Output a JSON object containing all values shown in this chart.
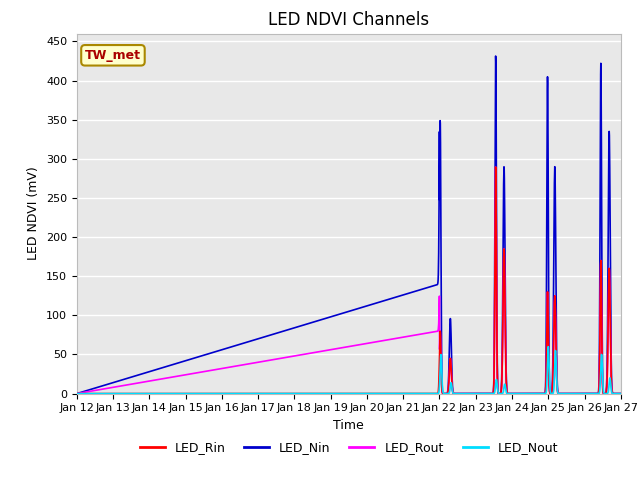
{
  "title": "LED NDVI Channels",
  "xlabel": "Time",
  "ylabel": "LED NDVI (mV)",
  "ylim": [
    0,
    460
  ],
  "yticks": [
    0,
    50,
    100,
    150,
    200,
    250,
    300,
    350,
    400,
    450
  ],
  "xtick_labels": [
    "Jan 12",
    "Jan 13",
    "Jan 14",
    "Jan 15",
    "Jan 16",
    "Jan 17",
    "Jan 18",
    "Jan 19",
    "Jan 20",
    "Jan 21",
    "Jan 22",
    "Jan 23",
    "Jan 24",
    "Jan 25",
    "Jan 26",
    "Jan 27"
  ],
  "annotation_text": "TW_met",
  "annotation_color": "#aa0000",
  "annotation_bg": "#ffffcc",
  "annotation_border": "#aa8800",
  "channels": {
    "LED_Rin": {
      "color": "#ff0000",
      "lw": 1.2
    },
    "LED_Nin": {
      "color": "#0000cc",
      "lw": 1.2
    },
    "LED_Rout": {
      "color": "#ff00ff",
      "lw": 1.2
    },
    "LED_Nout": {
      "color": "#00ddff",
      "lw": 1.2
    }
  },
  "background_color": "#e8e8e8",
  "grid_color": "#ffffff",
  "title_fontsize": 12,
  "label_fontsize": 9,
  "tick_fontsize": 8,
  "legend_fontsize": 9
}
